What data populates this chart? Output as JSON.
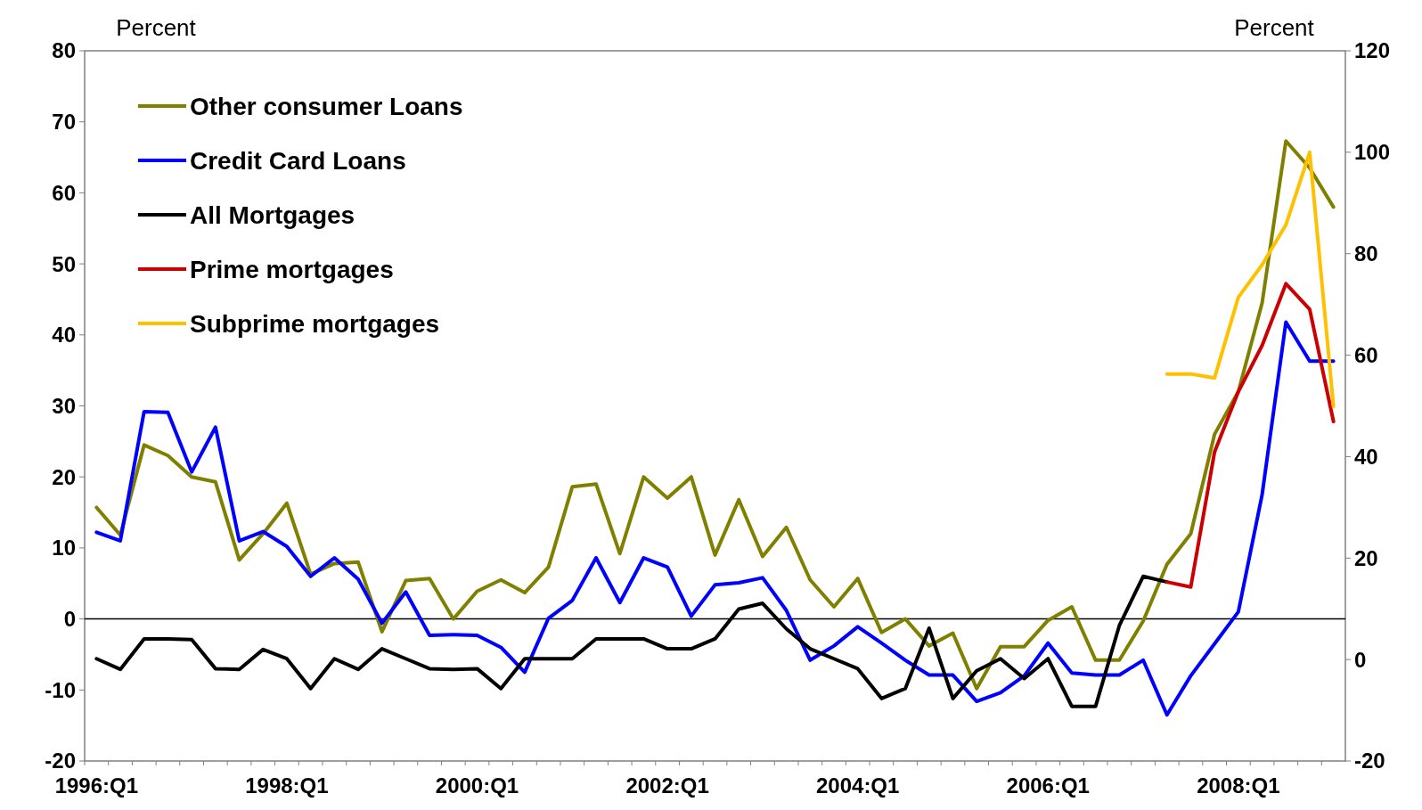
{
  "chart_data": {
    "type": "line",
    "ylabel": "Percent",
    "y2label": "Percent",
    "categories": [
      "1996:Q1",
      null,
      null,
      null,
      null,
      null,
      null,
      null,
      "1998:Q1",
      null,
      null,
      null,
      null,
      null,
      null,
      null,
      "2000:Q1",
      null,
      null,
      null,
      null,
      null,
      null,
      null,
      "2002:Q1",
      null,
      null,
      null,
      null,
      null,
      null,
      null,
      "2004:Q1",
      null,
      null,
      null,
      null,
      null,
      null,
      null,
      "2006:Q1",
      null,
      null,
      null,
      null,
      null,
      null,
      null,
      "2008:Q1",
      null,
      null,
      null,
      null
    ],
    "ylim": [
      -20,
      80
    ],
    "yticks": [
      -20,
      -10,
      0,
      10,
      20,
      30,
      40,
      50,
      60,
      70,
      80
    ],
    "y2lim": [
      -20,
      120
    ],
    "y2ticks": [
      -20,
      0,
      20,
      40,
      60,
      80,
      100,
      120
    ],
    "grid": false,
    "legend": "top left",
    "marker": "none",
    "line_style": "solid",
    "ref_lines": [
      {
        "axis": "y",
        "value": 0,
        "color": "#000000"
      }
    ],
    "series": [
      {
        "name": "Other consumer Loans",
        "color": "#808000",
        "values": [
          15.7,
          11.8,
          24.5,
          23,
          20,
          19.3,
          8.3,
          12,
          16.3,
          6.3,
          7.8,
          8,
          -1.8,
          5.4,
          5.7,
          0,
          3.9,
          5.5,
          3.7,
          7.3,
          18.6,
          19,
          9.2,
          20,
          17,
          20,
          9,
          16.8,
          8.8,
          12.9,
          5.5,
          1.7,
          5.7,
          -1.9,
          0,
          -3.8,
          -2,
          -9.8,
          -3.9,
          -3.9,
          -0.2,
          1.7,
          -5.8,
          -5.8,
          -0.3,
          7.7,
          12,
          26,
          32,
          44.5,
          67.3,
          63.5,
          58
        ]
      },
      {
        "name": "Credit Card Loans",
        "color": "#0000ff",
        "values": [
          12.2,
          11,
          29.2,
          29.1,
          20.7,
          27,
          11,
          12.3,
          10.2,
          6,
          8.6,
          5.6,
          -0.6,
          3.8,
          -2.3,
          -2.2,
          -2.3,
          -4,
          -7.5,
          0.1,
          2.6,
          8.6,
          2.3,
          8.6,
          7.3,
          0.4,
          4.8,
          5.1,
          5.8,
          1.2,
          -5.8,
          -3.8,
          -1.1,
          -3.4,
          -5.8,
          -7.9,
          -7.9,
          -11.6,
          -10.4,
          -8,
          -3.4,
          -7.6,
          -7.9,
          -7.9,
          -5.8,
          -13.5,
          -8,
          -3.5,
          1,
          17.5,
          41.8,
          36.3,
          36.3
        ]
      },
      {
        "name": "All Mortgages",
        "color": "#000000",
        "values": [
          -5.6,
          -7.1,
          -2.8,
          -2.8,
          -2.9,
          -7,
          -7.1,
          -4.3,
          -5.6,
          -9.8,
          -5.6,
          -7.1,
          -4.2,
          -5.6,
          -7,
          -7.1,
          -7,
          -9.8,
          -5.6,
          -5.6,
          -5.6,
          -2.8,
          -2.8,
          -2.8,
          -4.2,
          -4.2,
          -2.8,
          1.4,
          2.2,
          -1.4,
          -4.2,
          -5.6,
          -7,
          -11.2,
          -9.8,
          -1.3,
          -11.2,
          -7.3,
          -5.6,
          -8.4,
          -5.6,
          -12.3,
          -12.3,
          -0.9,
          6,
          5.2,
          null,
          null,
          null,
          null,
          null,
          null,
          null
        ]
      },
      {
        "name": "Prime mortgages",
        "color": "#cc0000",
        "values": [
          null,
          null,
          null,
          null,
          null,
          null,
          null,
          null,
          null,
          null,
          null,
          null,
          null,
          null,
          null,
          null,
          null,
          null,
          null,
          null,
          null,
          null,
          null,
          null,
          null,
          null,
          null,
          null,
          null,
          null,
          null,
          null,
          null,
          null,
          null,
          null,
          null,
          null,
          null,
          null,
          null,
          null,
          null,
          null,
          null,
          5.2,
          4.5,
          23.5,
          32,
          38.5,
          47.2,
          43.6,
          27.8
        ]
      },
      {
        "name": "Subprime mortgages",
        "color": "#ffc000",
        "axis": "y2",
        "values": [
          null,
          null,
          null,
          null,
          null,
          null,
          null,
          null,
          null,
          null,
          null,
          null,
          null,
          null,
          null,
          null,
          null,
          null,
          null,
          null,
          null,
          null,
          null,
          null,
          null,
          null,
          null,
          null,
          null,
          null,
          null,
          null,
          null,
          null,
          null,
          null,
          null,
          null,
          null,
          null,
          null,
          null,
          null,
          null,
          null,
          56.3,
          56.3,
          55.5,
          71.4,
          77.8,
          85.7,
          100,
          49.9
        ]
      }
    ]
  }
}
